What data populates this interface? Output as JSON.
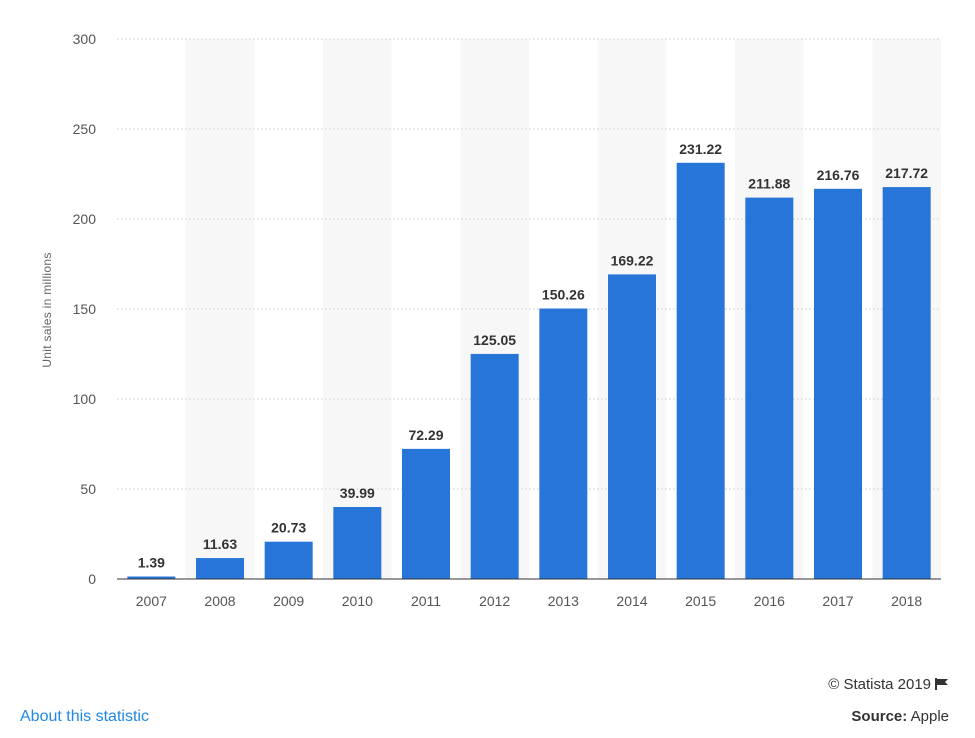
{
  "chart_data": {
    "type": "bar",
    "categories": [
      "2007",
      "2008",
      "2009",
      "2010",
      "2011",
      "2012",
      "2013",
      "2014",
      "2015",
      "2016",
      "2017",
      "2018"
    ],
    "values": [
      1.39,
      11.63,
      20.73,
      39.99,
      72.29,
      125.05,
      150.26,
      169.22,
      231.22,
      211.88,
      216.76,
      217.72
    ],
    "value_labels": [
      "1.39",
      "11.63",
      "20.73",
      "39.99",
      "72.29",
      "125.05",
      "150.26",
      "169.22",
      "231.22",
      "211.88",
      "216.76",
      "217.72"
    ],
    "ylabel": "Unit sales in millions",
    "ylim": [
      0,
      300
    ],
    "yticks": [
      "0",
      "50",
      "100",
      "150",
      "200",
      "250",
      "300"
    ],
    "grid": true,
    "bar_color": "#2775d9"
  },
  "footer": {
    "credit": "© Statista 2019",
    "about_link": "About this statistic",
    "source_label": "Source:",
    "source_value": "Apple"
  },
  "icons": {
    "credit_flag": "flag-icon"
  }
}
